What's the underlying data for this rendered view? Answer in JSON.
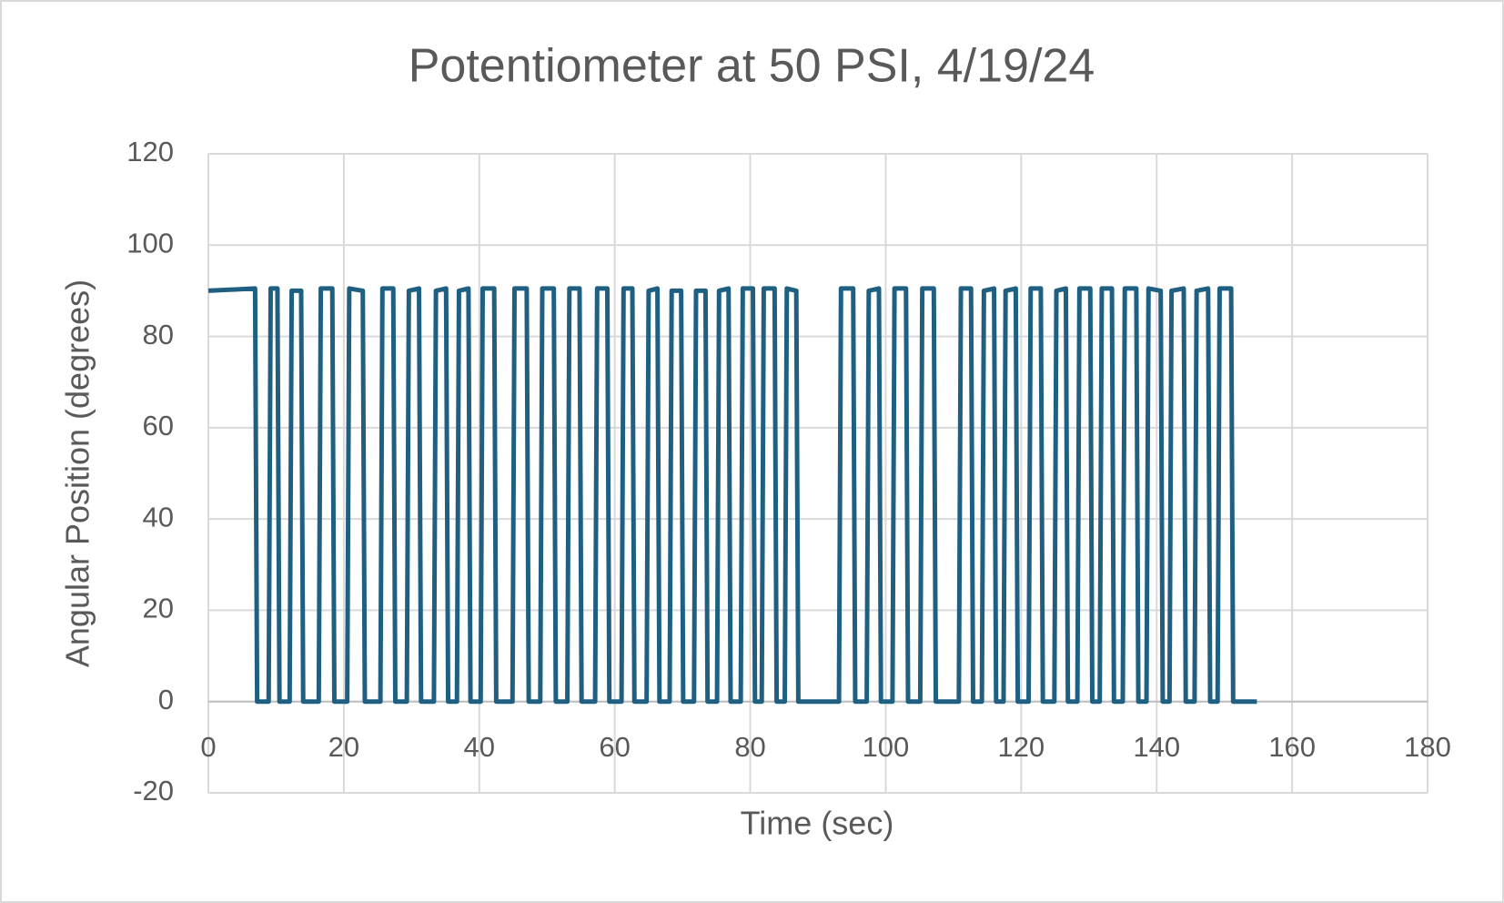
{
  "chart_data": {
    "type": "line",
    "title": "Potentiometer at 50 PSI, 4/19/24",
    "x_label": "Time (sec)",
    "y_label": "Angular Position (degrees)",
    "xlim": [
      0,
      180
    ],
    "xticks": [
      0,
      20,
      40,
      60,
      80,
      100,
      120,
      140,
      160,
      180
    ],
    "ylim": [
      -20,
      120
    ],
    "yticks": [
      -20,
      0,
      20,
      40,
      60,
      80,
      100,
      120
    ],
    "grid": true,
    "x": [
      0,
      6.9,
      7.2,
      8.9,
      9.2,
      10.2,
      10.5,
      12.0,
      12.3,
      13.7,
      14.0,
      16.3,
      16.6,
      18.3,
      18.6,
      20.5,
      20.8,
      22.8,
      23.1,
      25.4,
      25.7,
      27.3,
      27.6,
      29.3,
      29.6,
      31.1,
      31.4,
      33.3,
      33.6,
      35.1,
      35.4,
      36.7,
      37.0,
      38.4,
      38.7,
      40.2,
      40.5,
      42.2,
      42.5,
      44.9,
      45.2,
      47.0,
      47.3,
      49.0,
      49.3,
      51.0,
      51.3,
      53.0,
      53.3,
      54.8,
      55.1,
      57.1,
      57.4,
      58.9,
      59.2,
      61.0,
      61.3,
      62.6,
      62.9,
      64.7,
      65.0,
      66.3,
      66.6,
      68.1,
      68.4,
      69.8,
      70.1,
      71.7,
      72.0,
      73.4,
      73.7,
      75.1,
      75.4,
      76.8,
      77.1,
      78.6,
      78.9,
      80.4,
      80.7,
      81.7,
      82.0,
      83.6,
      83.9,
      85.1,
      85.4,
      86.8,
      87.1,
      93.1,
      93.4,
      95.2,
      95.5,
      97.2,
      97.5,
      99.0,
      99.3,
      101.0,
      101.3,
      103.0,
      103.3,
      105.1,
      105.4,
      107.1,
      107.4,
      110.8,
      111.1,
      112.6,
      112.9,
      114.2,
      114.5,
      116.0,
      116.3,
      117.4,
      117.7,
      119.2,
      119.5,
      121.1,
      121.4,
      122.9,
      123.2,
      124.9,
      125.2,
      126.6,
      126.9,
      128.3,
      128.6,
      130.2,
      130.5,
      131.6,
      131.9,
      133.4,
      133.7,
      135.0,
      135.3,
      137.0,
      137.3,
      138.5,
      138.8,
      140.6,
      140.9,
      141.9,
      142.2,
      144.0,
      144.3,
      145.6,
      145.9,
      147.6,
      147.9,
      149.0,
      149.3,
      151.0,
      151.3,
      154.8
    ],
    "series": [
      {
        "name": "Angular Position",
        "color": "#1f6082",
        "values": [
          90,
          90.5,
          0,
          0,
          90.5,
          90.5,
          0,
          0,
          90,
          90,
          0,
          0,
          90.5,
          90.5,
          0,
          0,
          90.5,
          90,
          0,
          0,
          90.5,
          90.5,
          0,
          0,
          90,
          90.5,
          0,
          0,
          90,
          90.5,
          0,
          0,
          90,
          90.5,
          0,
          0,
          90.5,
          90.5,
          0,
          0,
          90.5,
          90.5,
          0,
          0,
          90.5,
          90.5,
          0,
          0,
          90.5,
          90.5,
          0,
          0,
          90.5,
          90.5,
          0,
          0,
          90.5,
          90.5,
          0,
          0,
          90,
          90.5,
          0,
          0,
          90,
          90,
          0,
          0,
          90,
          90,
          0,
          0,
          90,
          90.5,
          0,
          0,
          90.5,
          90.5,
          0,
          0,
          90.5,
          90.5,
          0,
          0,
          90.5,
          90,
          0,
          0,
          90.5,
          90.5,
          0,
          0,
          90,
          90.5,
          0,
          0,
          90.5,
          90.5,
          0,
          0,
          90.5,
          90.5,
          0,
          0,
          90.5,
          90.5,
          0,
          0,
          90,
          90.5,
          0,
          0,
          90,
          90.5,
          0,
          0,
          90.5,
          90.5,
          0,
          0,
          90,
          90.5,
          0,
          0,
          90.5,
          90.5,
          0,
          0,
          90.5,
          90.5,
          0,
          0,
          90.5,
          90.5,
          0,
          0,
          90.5,
          90,
          0,
          0,
          90,
          90.5,
          0,
          0,
          90,
          90.5,
          0,
          0,
          90.5,
          90.5,
          0,
          0
        ]
      }
    ]
  }
}
